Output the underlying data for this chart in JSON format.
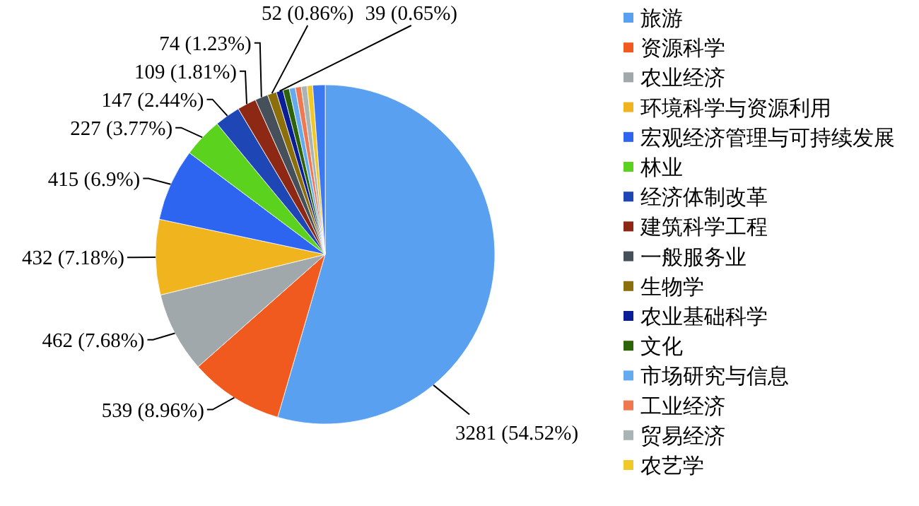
{
  "chart_data": {
    "type": "pie",
    "categories": [
      "旅游",
      "资源科学",
      "农业经济",
      "环境科学与资源利用",
      "宏观经济管理与可持续发展",
      "林业",
      "经济体制改革",
      "建筑科学工程",
      "一般服务业",
      "生物学",
      "农业基础科学",
      "文化",
      "市场研究与信息",
      "工业经济",
      "贸易经济",
      "农艺学",
      null
    ],
    "values": [
      3281,
      539,
      462,
      432,
      415,
      227,
      147,
      109,
      74,
      52,
      39,
      36,
      35,
      34,
      33,
      32,
      71
    ],
    "value_labels": [
      "3281 (54.52%)",
      "539 (8.96%)",
      "462 (7.68%)",
      "432 (7.18%)",
      "415 (6.9%)",
      "227 (3.77%)",
      "147 (2.44%)",
      "109 (1.81%)",
      "74 (1.23%)",
      "52 (0.86%)",
      "39 (0.65%)",
      null,
      null,
      null,
      null,
      null,
      null
    ],
    "colors": [
      "#5aa0f0",
      "#f05a1e",
      "#a0a8ac",
      "#f0b41e",
      "#2d64f0",
      "#5ad21e",
      "#1e46b4",
      "#8c2814",
      "#46505a",
      "#8c6e0a",
      "#0a1e96",
      "#2d640a",
      "#64aaf0",
      "#f07850",
      "#aab4b4",
      "#f0c828",
      "#3c78f0"
    ],
    "legend": "right"
  }
}
